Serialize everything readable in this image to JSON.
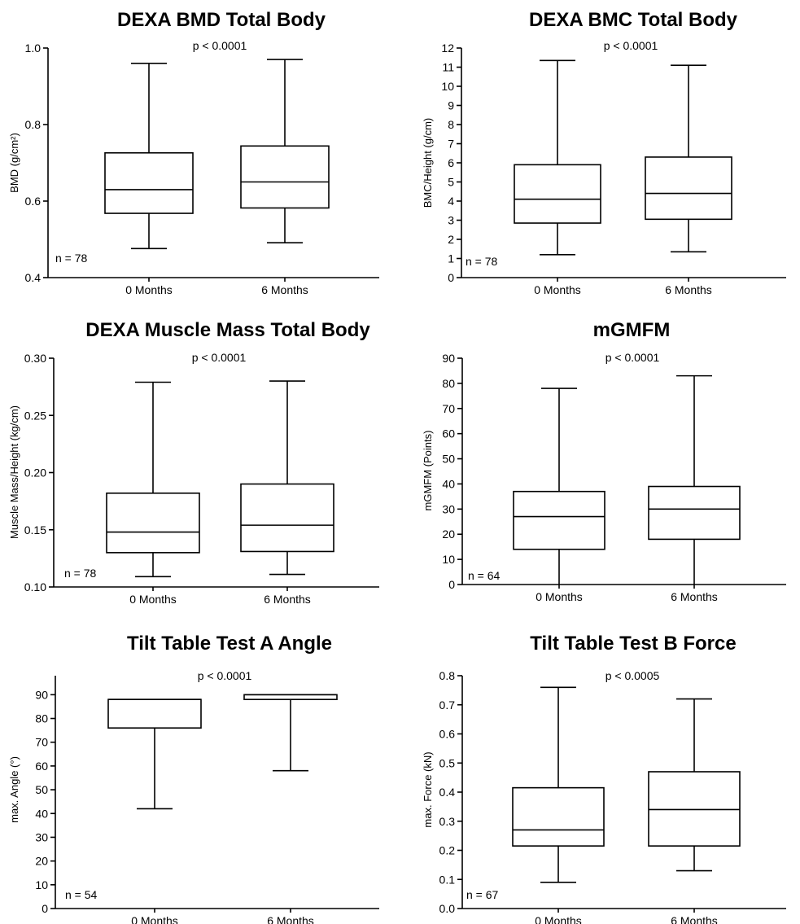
{
  "chart_data": [
    {
      "type": "box",
      "title": "DEXA BMD Total Body",
      "ylabel": "BMD (g/cm²)",
      "ylim": [
        0.4,
        1.0
      ],
      "yticks": [
        "0.4",
        "0.6",
        "0.8",
        "1.0"
      ],
      "categories": [
        "0 Months",
        "6 Months"
      ],
      "p_text": "p < 0.0001",
      "n_text": "n = 78",
      "boxes": [
        {
          "min": 0.476,
          "q1": 0.568,
          "median": 0.63,
          "q3": 0.726,
          "max": 0.96
        },
        {
          "min": 0.491,
          "q1": 0.582,
          "median": 0.65,
          "q3": 0.744,
          "max": 0.97
        }
      ]
    },
    {
      "type": "box",
      "title": "DEXA BMC Total Body",
      "ylabel": "BMC/Height (g/cm)",
      "ylim": [
        0,
        12
      ],
      "yticks": [
        "0",
        "1",
        "2",
        "3",
        "4",
        "5",
        "6",
        "7",
        "8",
        "9",
        "10",
        "11",
        "12"
      ],
      "categories": [
        "0 Months",
        "6 Months"
      ],
      "p_text": "p < 0.0001",
      "n_text": "n = 78",
      "boxes": [
        {
          "min": 1.2,
          "q1": 2.85,
          "median": 4.1,
          "q3": 5.9,
          "max": 11.35
        },
        {
          "min": 1.35,
          "q1": 3.05,
          "median": 4.4,
          "q3": 6.3,
          "max": 11.1
        }
      ]
    },
    {
      "type": "box",
      "title": "DEXA Muscle Mass Total Body",
      "ylabel": "Muscle Mass/Height (kg/cm)",
      "ylim": [
        0.1,
        0.3
      ],
      "yticks": [
        "0.10",
        "0.15",
        "0.20",
        "0.25",
        "0.30"
      ],
      "categories": [
        "0 Months",
        "6 Months"
      ],
      "p_text": "p < 0.0001",
      "n_text": "n = 78",
      "boxes": [
        {
          "min": 0.109,
          "q1": 0.13,
          "median": 0.148,
          "q3": 0.182,
          "max": 0.279
        },
        {
          "min": 0.111,
          "q1": 0.131,
          "median": 0.154,
          "q3": 0.19,
          "max": 0.28
        }
      ]
    },
    {
      "type": "box",
      "title": "mGMFM",
      "ylabel": "mGMFM (Points)",
      "ylim": [
        0,
        90
      ],
      "yticks": [
        "0",
        "10",
        "20",
        "30",
        "40",
        "50",
        "60",
        "70",
        "80",
        "90"
      ],
      "categories": [
        "0 Months",
        "6 Months"
      ],
      "p_text": "p < 0.0001",
      "n_text": "n = 64",
      "boxes": [
        {
          "min": 0,
          "q1": 14,
          "median": 27,
          "q3": 37,
          "max": 78
        },
        {
          "min": 0,
          "q1": 18,
          "median": 30,
          "q3": 39,
          "max": 83
        }
      ]
    },
    {
      "type": "box",
      "title": "Tilt Table Test A Angle",
      "ylabel": "max. Angle (°)",
      "ylim": [
        0,
        98
      ],
      "yticks": [
        "0",
        "10",
        "20",
        "30",
        "40",
        "50",
        "60",
        "70",
        "80",
        "90"
      ],
      "categories": [
        "0 Months",
        "6 Months"
      ],
      "p_text": "p < 0.0001",
      "n_text": "n = 54",
      "boxes": [
        {
          "min": 42,
          "q1": 76,
          "median": 88,
          "q3": 88,
          "max": 88
        },
        {
          "min": 58,
          "q1": 88,
          "median": 90,
          "q3": 90,
          "max": 90
        }
      ]
    },
    {
      "type": "box",
      "title": "Tilt Table Test B Force",
      "ylabel": "max. Force (kN)",
      "ylim": [
        0,
        0.8
      ],
      "yticks": [
        "0.0",
        "0.1",
        "0.2",
        "0.3",
        "0.4",
        "0.5",
        "0.6",
        "0.7",
        "0.8"
      ],
      "categories": [
        "0 Months",
        "6 Months"
      ],
      "p_text": "p < 0.0005",
      "n_text": "n = 67",
      "boxes": [
        {
          "min": 0.09,
          "q1": 0.215,
          "median": 0.27,
          "q3": 0.415,
          "max": 0.76
        },
        {
          "min": 0.13,
          "q1": 0.215,
          "median": 0.34,
          "q3": 0.47,
          "max": 0.72
        }
      ]
    }
  ]
}
